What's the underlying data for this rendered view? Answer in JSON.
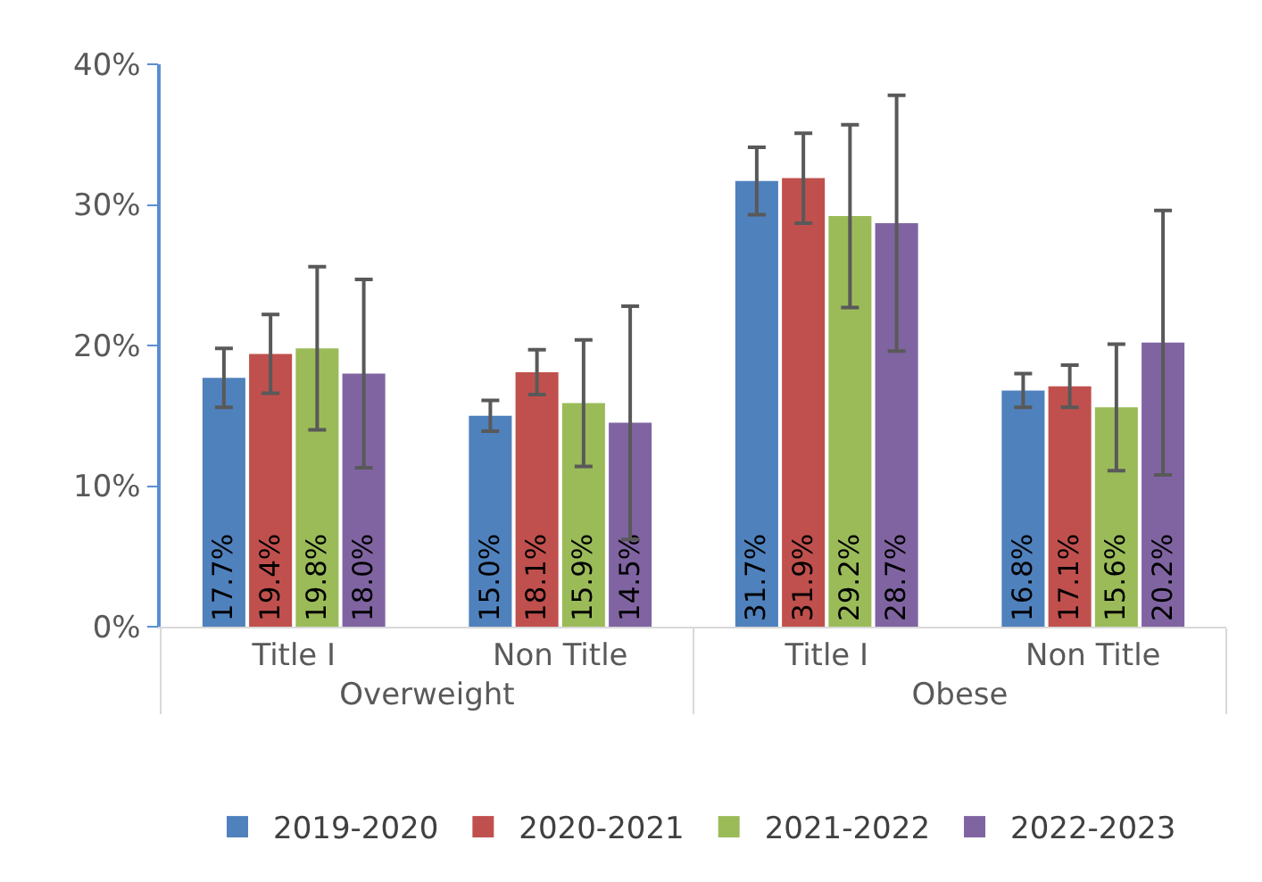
{
  "chart_data": {
    "type": "bar",
    "categories": [
      "Title I",
      "Non Title",
      "Title I",
      "Non Title"
    ],
    "annotations": [
      "Overweight",
      "Obese"
    ],
    "series": [
      {
        "name": "2019-2020",
        "color": "#4f81bd",
        "values": [
          17.7,
          15.0,
          31.7,
          16.8
        ],
        "value_labels": [
          "17.7%",
          "15.0%",
          "31.7%",
          "16.8%"
        ],
        "errors": [
          2.1,
          1.1,
          2.4,
          1.2
        ]
      },
      {
        "name": "2020-2021",
        "color": "#c0504d",
        "values": [
          19.4,
          18.1,
          31.9,
          17.1
        ],
        "value_labels": [
          "19.4%",
          "18.1%",
          "31.9%",
          "17.1%"
        ],
        "errors": [
          2.8,
          1.6,
          3.2,
          1.5
        ]
      },
      {
        "name": "2021-2022",
        "color": "#9bbb59",
        "values": [
          19.8,
          15.9,
          29.2,
          15.6
        ],
        "value_labels": [
          "19.8%",
          "15.9%",
          "29.2%",
          "15.6%"
        ],
        "errors": [
          5.8,
          4.5,
          6.5,
          4.5
        ]
      },
      {
        "name": "2022-2023",
        "color": "#8064a2",
        "values": [
          18.0,
          14.5,
          28.7,
          20.2
        ],
        "value_labels": [
          "18.0%",
          "14.5%",
          "28.7%",
          "20.2%"
        ],
        "errors": [
          6.7,
          8.3,
          9.1,
          9.4
        ]
      }
    ],
    "ylim": [
      0,
      40
    ],
    "yticks": [
      {
        "value": 0,
        "label": "0%"
      },
      {
        "value": 10,
        "label": "10%"
      },
      {
        "value": 20,
        "label": "20%"
      },
      {
        "value": 30,
        "label": "30%"
      },
      {
        "value": 40,
        "label": "40%"
      }
    ],
    "grid": false,
    "legend": "bottom"
  }
}
